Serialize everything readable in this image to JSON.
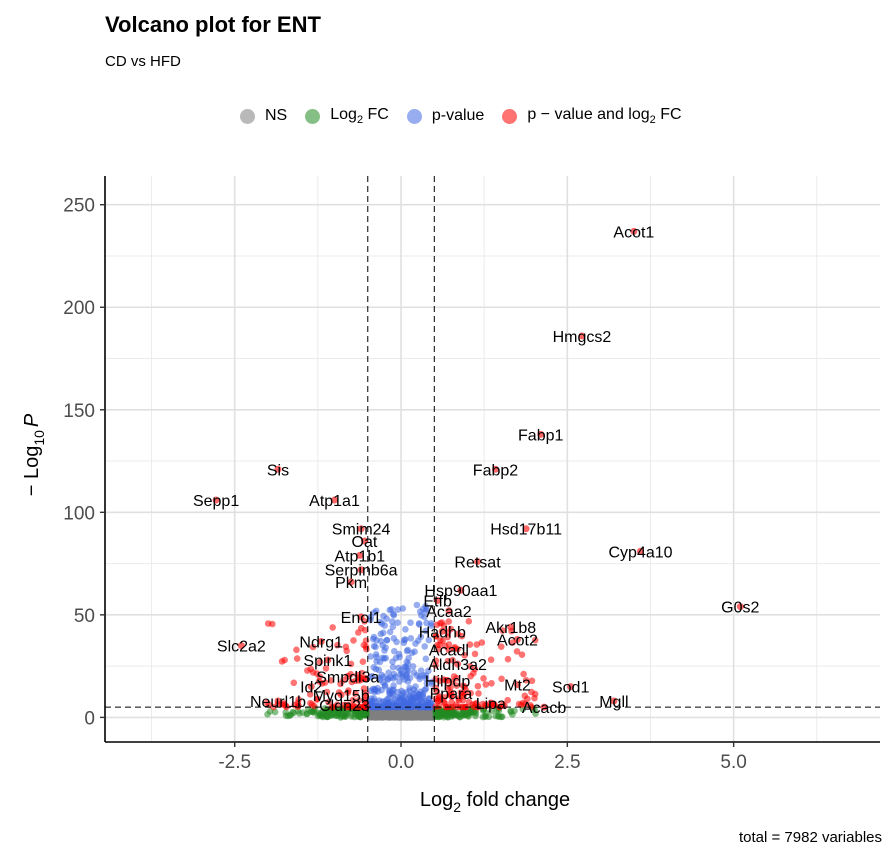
{
  "chart_data": {
    "type": "scatter",
    "title": "Volcano plot for ENT",
    "subtitle": "CD vs HFD",
    "caption": "total = 7982 variables",
    "xlabel_main": "Log",
    "xlabel_sub": "2",
    "xlabel_tail": " fold change",
    "ylabel_prefix": "− Log",
    "ylabel_sub": "10",
    "ylabel_tail": "P",
    "xlim": [
      -4.45,
      7.2
    ],
    "ylim": [
      -12,
      264
    ],
    "x_ticks": [
      -2.5,
      0.0,
      2.5,
      5.0
    ],
    "x_tick_labels": [
      "-2.5",
      "0.0",
      "2.5",
      "5.0"
    ],
    "y_ticks": [
      0,
      50,
      100,
      150,
      200,
      250
    ],
    "y_tick_labels": [
      "0",
      "50",
      "100",
      "150",
      "200",
      "250"
    ],
    "fc_cutoff": 0.5,
    "p_cutoff_y": 5,
    "grid": true,
    "legend_position": "top",
    "legend": [
      {
        "key": "NS",
        "label_main": "NS",
        "label_sub": "",
        "label_tail": "",
        "color": "#808080"
      },
      {
        "key": "FC",
        "label_main": "Log",
        "label_sub": "2",
        "label_tail": " FC",
        "color": "#228b22"
      },
      {
        "key": "P",
        "label_main": "p-value",
        "label_sub": "",
        "label_tail": "",
        "color": "#4169e1"
      },
      {
        "key": "PFC",
        "label_main": "p − value and log",
        "label_sub": "2",
        "label_tail": " FC",
        "color": "#ff0000"
      }
    ],
    "labeled_points": [
      {
        "label": "Acot1",
        "x": 3.5,
        "y": 237
      },
      {
        "label": "Hmgcs2",
        "x": 2.72,
        "y": 186
      },
      {
        "label": "Fabp1",
        "x": 2.1,
        "y": 138
      },
      {
        "label": "Fabp2",
        "x": 1.42,
        "y": 121
      },
      {
        "label": "Sis",
        "x": -1.85,
        "y": 121
      },
      {
        "label": "Sepp1",
        "x": -2.78,
        "y": 106
      },
      {
        "label": "Atp1a1",
        "x": -1.0,
        "y": 106
      },
      {
        "label": "Hsd17b11",
        "x": 1.88,
        "y": 92
      },
      {
        "label": "Smim24",
        "x": -0.6,
        "y": 92
      },
      {
        "label": "Cyp4a10",
        "x": 3.6,
        "y": 81
      },
      {
        "label": "Oat",
        "x": -0.55,
        "y": 86
      },
      {
        "label": "Atp1b1",
        "x": -0.62,
        "y": 79
      },
      {
        "label": "Retsat",
        "x": 1.15,
        "y": 76
      },
      {
        "label": "Serpinb6a",
        "x": -0.6,
        "y": 72
      },
      {
        "label": "Hsp90aa1",
        "x": 0.9,
        "y": 62
      },
      {
        "label": "Pkm",
        "x": -0.75,
        "y": 66
      },
      {
        "label": "G0s2",
        "x": 5.1,
        "y": 54
      },
      {
        "label": "Etfb",
        "x": 0.55,
        "y": 57
      },
      {
        "label": "Acaa2",
        "x": 0.72,
        "y": 52
      },
      {
        "label": "Enol1",
        "x": -0.6,
        "y": 49
      },
      {
        "label": "Akr1b8",
        "x": 1.65,
        "y": 44
      },
      {
        "label": "Hadhb",
        "x": 0.62,
        "y": 42
      },
      {
        "label": "Slc2a2",
        "x": -2.4,
        "y": 35
      },
      {
        "label": "Ndrg1",
        "x": -1.2,
        "y": 37
      },
      {
        "label": "Acot2",
        "x": 1.75,
        "y": 38
      },
      {
        "label": "Acadl",
        "x": 0.72,
        "y": 33
      },
      {
        "label": "Spink1",
        "x": -1.1,
        "y": 28
      },
      {
        "label": "Aldh3a2",
        "x": 0.85,
        "y": 26
      },
      {
        "label": "Smpdl3a",
        "x": -0.8,
        "y": 20
      },
      {
        "label": "Hilpdp",
        "x": 0.7,
        "y": 18
      },
      {
        "label": "Sod1",
        "x": 2.55,
        "y": 15
      },
      {
        "label": "Id2",
        "x": -1.35,
        "y": 15
      },
      {
        "label": "Mt2",
        "x": 1.75,
        "y": 16
      },
      {
        "label": "Myo15b",
        "x": -0.9,
        "y": 11
      },
      {
        "label": "Ppara",
        "x": 0.75,
        "y": 12
      },
      {
        "label": "Lipa",
        "x": 1.35,
        "y": 7
      },
      {
        "label": "Mgll",
        "x": 3.2,
        "y": 8
      },
      {
        "label": "Neurl1b",
        "x": -1.85,
        "y": 8
      },
      {
        "label": "Cldn23",
        "x": -0.85,
        "y": 6
      },
      {
        "label": "Acacb",
        "x": 2.15,
        "y": 5
      }
    ]
  }
}
